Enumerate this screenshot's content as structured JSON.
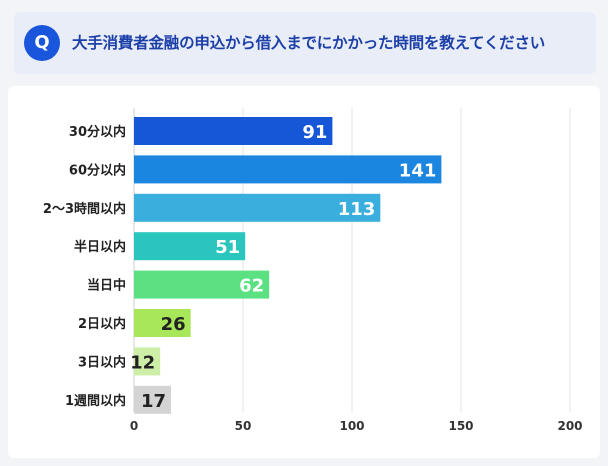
{
  "question": {
    "badge": "Q",
    "text": "大手消費者金融の申込から借入までにかかった時間を教えてください"
  },
  "chart_data": {
    "type": "bar",
    "orientation": "horizontal",
    "categories": [
      "30分以内",
      "60分以内",
      "2〜3時間以内",
      "半日以内",
      "当日中",
      "2日以内",
      "3日以内",
      "1週間以内"
    ],
    "values": [
      91,
      141,
      113,
      51,
      62,
      26,
      12,
      17
    ],
    "bar_colors": [
      "#1557d6",
      "#1a86e0",
      "#3aaedc",
      "#2ac5bd",
      "#5be082",
      "#a8e65a",
      "#cdeea6",
      "#d4d4d4"
    ],
    "label_colors": [
      "#ffffff",
      "#ffffff",
      "#ffffff",
      "#ffffff",
      "#ffffff",
      "#222222",
      "#222222",
      "#222222"
    ],
    "xlim": [
      0,
      200
    ],
    "xticks": [
      0,
      50,
      100,
      150,
      200
    ],
    "grid": true
  }
}
